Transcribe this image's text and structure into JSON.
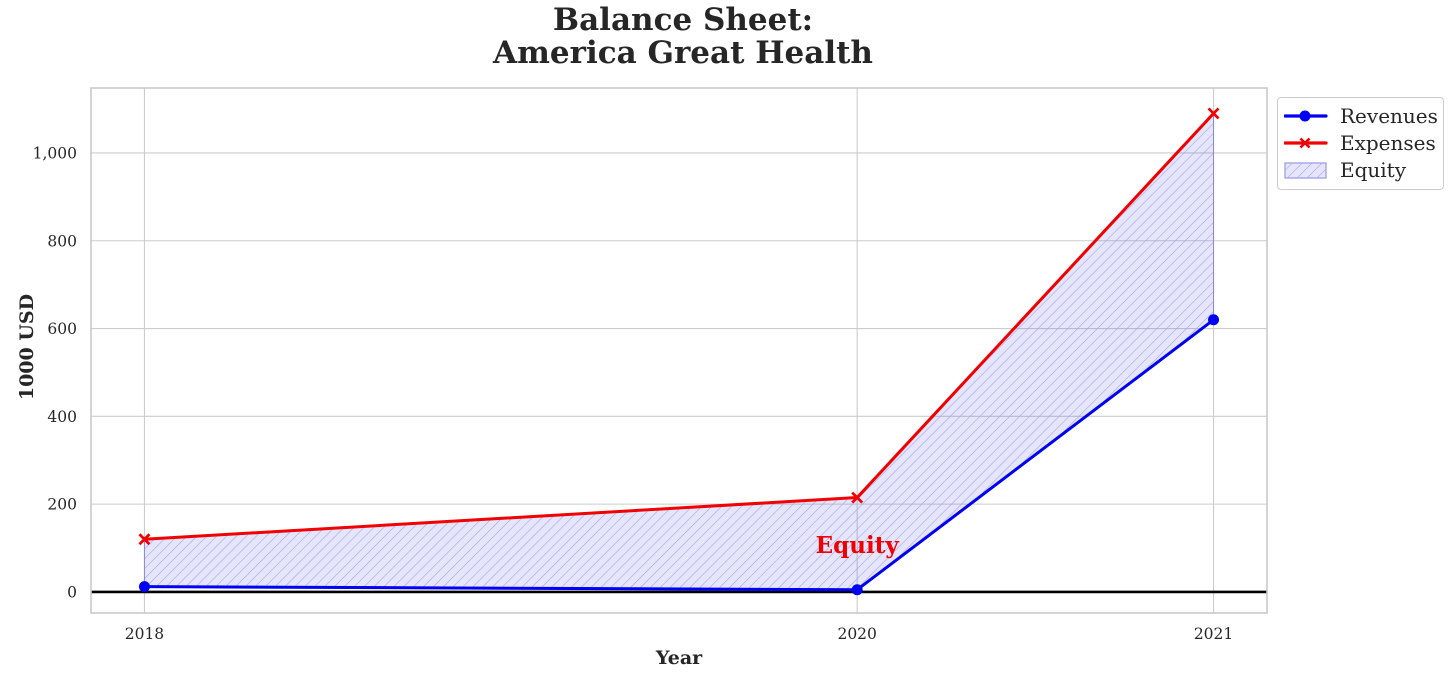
{
  "chart_data": {
    "type": "line",
    "title": "Balance Sheet:\nAmerica Great Health",
    "xlabel": "Year",
    "ylabel": "1000 USD",
    "x": [
      2018,
      2020,
      2021
    ],
    "series": [
      {
        "name": "Revenues",
        "values": [
          12,
          5,
          620
        ],
        "color": "#0000f2",
        "marker": "circle"
      },
      {
        "name": "Expenses",
        "values": [
          120,
          215,
          1090
        ],
        "color": "#f20000",
        "marker": "x"
      }
    ],
    "fill_between": {
      "name": "Equity",
      "upper_series": "Expenses",
      "lower_series": "Revenues",
      "fill_color": "rgba(70,70,235,0.14)",
      "hatch_color": "#a5a5e8",
      "edge_color": "rgba(70,70,235,0.45)"
    },
    "annotation": {
      "text": "Equity",
      "x": 2020,
      "y": 107,
      "color": "#f20000"
    },
    "xticks": {
      "values": [
        2018,
        2020,
        2021
      ],
      "labels": [
        "2018",
        "2020",
        "2021"
      ]
    },
    "yticks": {
      "values": [
        0,
        200,
        400,
        600,
        800,
        1000
      ],
      "labels": [
        "0",
        "200",
        "400",
        "600",
        "800",
        "1,000"
      ]
    },
    "xlim": [
      2017.85,
      2021.15
    ],
    "ylim": [
      -48,
      1148
    ],
    "zero_line_y": 0,
    "grid": true,
    "legend": {
      "position": "outside-top-right",
      "entries": [
        {
          "label": "Revenues",
          "kind": "line",
          "series": "Revenues"
        },
        {
          "label": "Expenses",
          "kind": "line",
          "series": "Expenses"
        },
        {
          "label": "Equity",
          "kind": "patch"
        }
      ]
    },
    "colors": {
      "text": "#262626",
      "grid": "#cccccc",
      "spine": "#c9c9c9",
      "zero_line": "#000000",
      "background": "#ffffff"
    }
  }
}
